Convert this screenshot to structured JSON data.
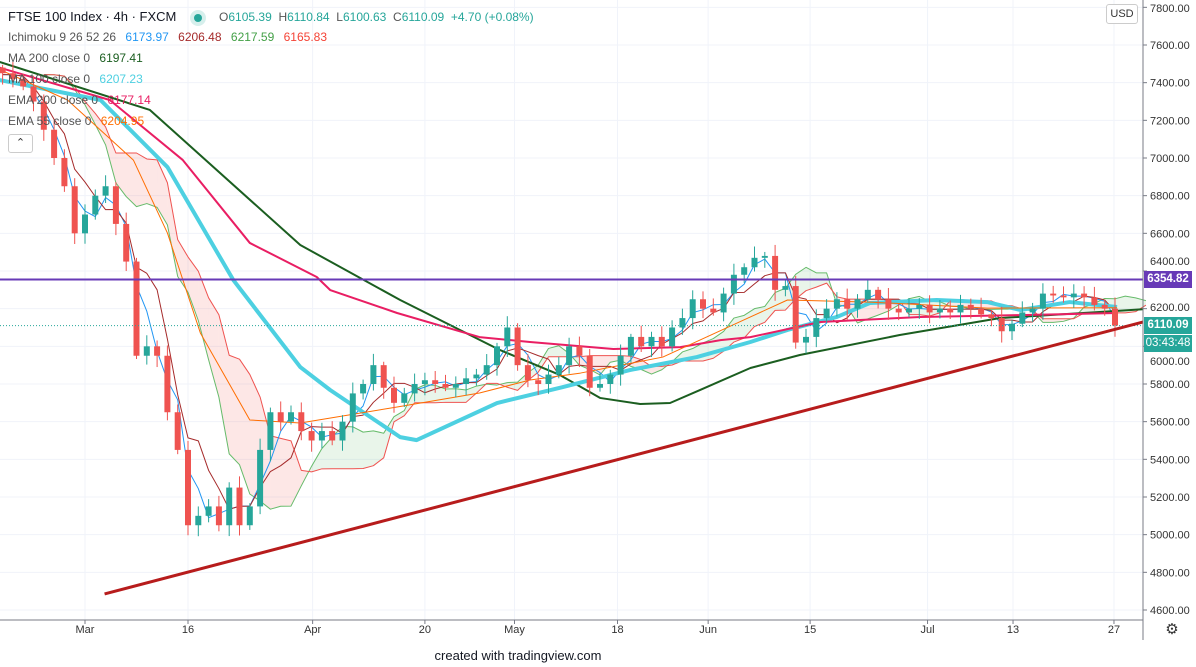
{
  "legend": {
    "symbol": "FTSE 100 Index · 4h · FXCM",
    "ohlc": {
      "o_label": "O",
      "o": "6105.39",
      "h_label": "H",
      "h": "6110.84",
      "l_label": "L",
      "l": "6100.63",
      "c_label": "C",
      "c": "6110.09",
      "change": "+4.70 (+0.08%)"
    },
    "ichimoku": {
      "label": "Ichimoku 9 26 52 26",
      "conversion": "6173.97",
      "base": "6206.48",
      "lead1": "6217.59",
      "lead2": "6165.83"
    },
    "ma200": {
      "label": "MA 200 close 0",
      "value": "6197.41"
    },
    "ma100": {
      "label": "MA 100 close 0",
      "value": "6207.23"
    },
    "ema200": {
      "label": "EMA 200 close 0",
      "value": "6177.14"
    },
    "ema55": {
      "label": "EMA 55 close 0",
      "value": "6204.95"
    },
    "collapse_icon": "chevron-up-icon"
  },
  "axis": {
    "currency": "USD",
    "resistance_badge": "6354.82",
    "price_badge": "6110.09",
    "countdown": "03:43:48",
    "settings_icon": "gear-icon"
  },
  "footer": "created with tradingview.com",
  "colors": {
    "up": "#26a69a",
    "down": "#ef5350",
    "ma200": "#1b5e20",
    "ma100": "#4dd0e1",
    "ema200": "#e91e63",
    "ema55": "#ff6d00",
    "tenkan": "#2196f3",
    "kijun": "#a52a2a",
    "spanA": "#66bb6a",
    "spanB": "#ef5350",
    "resistance": "#673ab7",
    "trend": "#b71c1c"
  },
  "chart_data": {
    "type": "candlestick",
    "title": "FTSE 100 Index · 4h · FXCM",
    "x_unit": "trading day index (0 = Mar 2)",
    "xlim": [
      -8.3,
      102.7
    ],
    "ylim": [
      4600,
      7800
    ],
    "yticks": [
      4600,
      4800,
      5000,
      5200,
      5400,
      5600,
      5800,
      6000,
      6200,
      6400,
      6600,
      6800,
      7000,
      7200,
      7400,
      7600,
      7800
    ],
    "xticks": [
      {
        "label": "Mar",
        "x": 0
      },
      {
        "label": "16",
        "x": 10
      },
      {
        "label": "Apr",
        "x": 22.1
      },
      {
        "label": "20",
        "x": 33
      },
      {
        "label": "May",
        "x": 41.7
      },
      {
        "label": "18",
        "x": 51.7
      },
      {
        "label": "Jun",
        "x": 60.5
      },
      {
        "label": "15",
        "x": 70.4
      },
      {
        "label": "Jul",
        "x": 81.8
      },
      {
        "label": "13",
        "x": 90.1
      },
      {
        "label": "27",
        "x": 99.9
      }
    ],
    "grid": true,
    "start_x": -8,
    "closes": [
      7450,
      7420,
      7380,
      7300,
      7150,
      7000,
      6850,
      6600,
      6700,
      6800,
      6850,
      6650,
      6450,
      5950,
      6000,
      5950,
      5650,
      5450,
      5050,
      5100,
      5150,
      5050,
      5250,
      5050,
      5150,
      5450,
      5650,
      5600,
      5650,
      5550,
      5500,
      5550,
      5500,
      5600,
      5750,
      5800,
      5900,
      5780,
      5700,
      5750,
      5800,
      5820,
      5800,
      5780,
      5800,
      5830,
      5850,
      5900,
      6000,
      6100,
      5900,
      5820,
      5800,
      5850,
      5900,
      6000,
      5950,
      5780,
      5800,
      5850,
      5950,
      6050,
      6000,
      6050,
      6000,
      6100,
      6150,
      6250,
      6200,
      6180,
      6280,
      6380,
      6420,
      6470,
      6480,
      6300,
      6320,
      6020,
      6050,
      6150,
      6200,
      6250,
      6200,
      6250,
      6300,
      6250,
      6200,
      6180,
      6200,
      6220,
      6180,
      6200,
      6180,
      6220,
      6200,
      6170,
      6150,
      6080,
      6120,
      6180,
      6200,
      6280,
      6270,
      6260,
      6280,
      6260,
      6220,
      6200,
      6110.09
    ],
    "series": [
      {
        "name": "MA 200",
        "points": [
          [
            -8.3,
            7510
          ],
          [
            6.3,
            7255
          ],
          [
            20.9,
            6538
          ],
          [
            30.6,
            6246
          ],
          [
            40.3,
            5980
          ],
          [
            46.1,
            5848
          ],
          [
            50,
            5726
          ],
          [
            53.9,
            5694
          ],
          [
            56.8,
            5699
          ],
          [
            59.7,
            5768
          ],
          [
            64.6,
            5885
          ],
          [
            69.4,
            5954
          ],
          [
            79.1,
            6060
          ],
          [
            88.8,
            6150
          ],
          [
            98.5,
            6182
          ],
          [
            102.7,
            6197
          ]
        ]
      },
      {
        "name": "MA 100",
        "points": [
          [
            -8.3,
            7414
          ],
          [
            1.5,
            7308
          ],
          [
            8.0,
            6952
          ],
          [
            14.4,
            6352
          ],
          [
            20.9,
            5890
          ],
          [
            23.8,
            5768
          ],
          [
            30.6,
            5518
          ],
          [
            32.2,
            5502
          ],
          [
            40.0,
            5699
          ],
          [
            46.4,
            5784
          ],
          [
            52.9,
            5874
          ],
          [
            59.4,
            5943
          ],
          [
            64.6,
            6023
          ],
          [
            68.2,
            6087
          ],
          [
            73.0,
            6156
          ],
          [
            76.2,
            6230
          ],
          [
            82.7,
            6246
          ],
          [
            87.6,
            6235
          ],
          [
            90.8,
            6193
          ],
          [
            95.6,
            6235
          ],
          [
            100.2,
            6209
          ]
        ]
      },
      {
        "name": "EMA 200",
        "points": [
          [
            -8.3,
            7480
          ],
          [
            2.4,
            7308
          ],
          [
            9.5,
            6989
          ],
          [
            16.0,
            6549
          ],
          [
            22.5,
            6368
          ],
          [
            23.8,
            6299
          ],
          [
            30.3,
            6177
          ],
          [
            38.3,
            6049
          ],
          [
            43.2,
            6023
          ],
          [
            51.3,
            5986
          ],
          [
            57.8,
            5996
          ],
          [
            61.7,
            6033
          ],
          [
            64.6,
            6049
          ],
          [
            71.4,
            6129
          ],
          [
            81.1,
            6156
          ],
          [
            90.8,
            6166
          ],
          [
            100.2,
            6177
          ]
        ]
      },
      {
        "name": "EMA 55",
        "points": [
          [
            -8.3,
            7470
          ],
          [
            -1.7,
            7308
          ],
          [
            4.7,
            6989
          ],
          [
            8.0,
            6602
          ],
          [
            11.2,
            6071
          ],
          [
            16.0,
            5609
          ],
          [
            20.9,
            5593
          ],
          [
            30.3,
            5678
          ],
          [
            38.3,
            5752
          ],
          [
            43.2,
            5821
          ],
          [
            48.1,
            5858
          ],
          [
            56.1,
            5943
          ],
          [
            64.6,
            6156
          ],
          [
            68.2,
            6246
          ],
          [
            76.2,
            6235
          ],
          [
            87.6,
            6203
          ],
          [
            100.2,
            6205
          ]
        ]
      }
    ],
    "ichimoku_periods": {
      "conversion": 9,
      "base": 26,
      "span_b": 52,
      "displacement": 26
    },
    "resistance": 6354.82,
    "current_price": 6110.09,
    "trendline": [
      [
        1.9,
        4685
      ],
      [
        102.7,
        6129
      ]
    ]
  }
}
